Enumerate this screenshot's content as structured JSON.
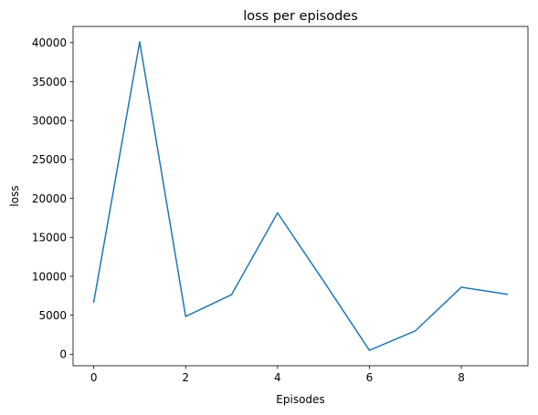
{
  "chart_data": {
    "type": "line",
    "title": "loss per episodes",
    "xlabel": "Episodes",
    "ylabel": "loss",
    "x": [
      0,
      1,
      2,
      3,
      4,
      5,
      6,
      7,
      8,
      9
    ],
    "series": [
      {
        "values": [
          6700,
          40100,
          4850,
          7650,
          18150,
          9400,
          500,
          3000,
          8600,
          7700
        ],
        "color": "#1f77b4"
      }
    ],
    "xlim": [
      -0.45,
      9.45
    ],
    "ylim": [
      -1480,
      42080
    ],
    "xticks": [
      0,
      2,
      4,
      6,
      8
    ],
    "xtick_labels": [
      "0",
      "2",
      "4",
      "6",
      "8"
    ],
    "yticks": [
      0,
      5000,
      10000,
      15000,
      20000,
      25000,
      30000,
      35000,
      40000
    ],
    "ytick_labels": [
      "0",
      "5000",
      "10000",
      "15000",
      "20000",
      "25000",
      "30000",
      "35000",
      "40000"
    ],
    "grid": false,
    "legend": "none"
  }
}
